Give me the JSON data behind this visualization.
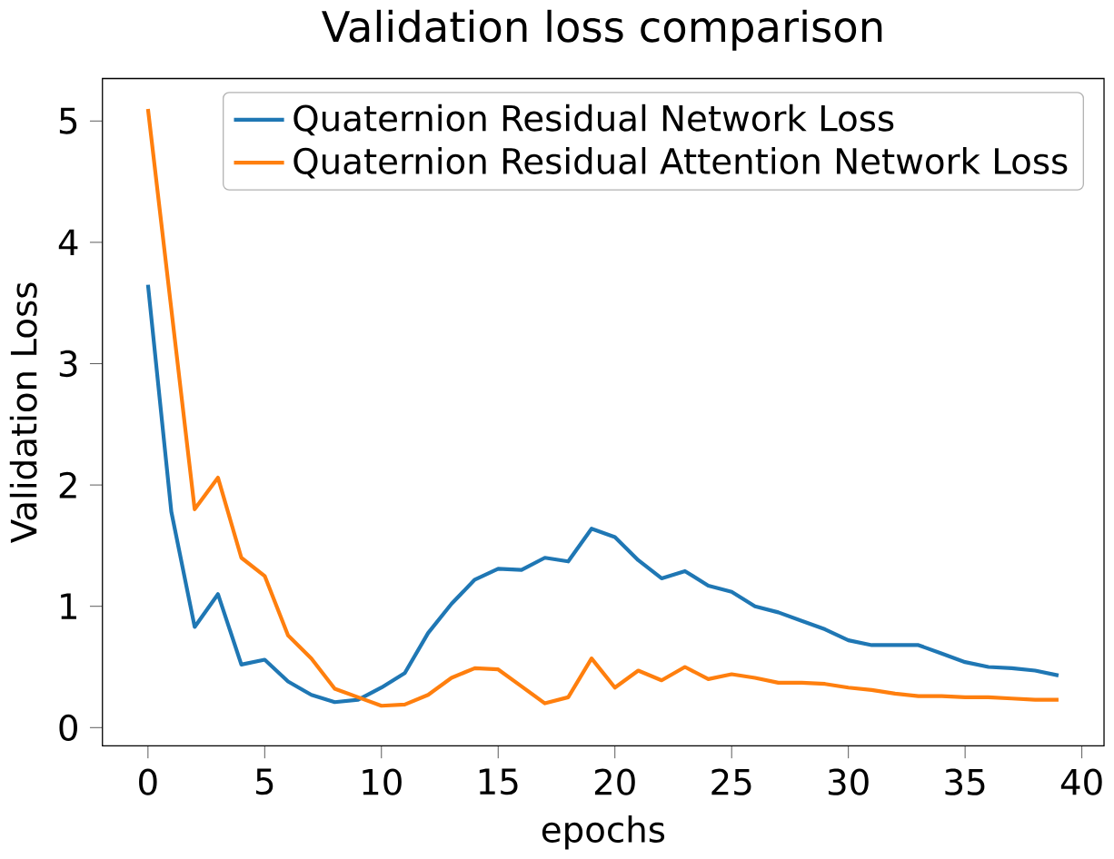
{
  "chart_data": {
    "type": "line",
    "title": "Validation loss comparison",
    "xlabel": "epochs",
    "ylabel": "Validation Loss",
    "x": [
      0,
      1,
      2,
      3,
      4,
      5,
      6,
      7,
      8,
      9,
      10,
      11,
      12,
      13,
      14,
      15,
      16,
      17,
      18,
      19,
      20,
      21,
      22,
      23,
      24,
      25,
      26,
      27,
      28,
      29,
      30,
      31,
      32,
      33,
      34,
      35,
      36,
      37,
      38,
      39
    ],
    "series": [
      {
        "name": "Quaternion Residual Network Loss",
        "color": "#1f77b4",
        "values": [
          3.65,
          1.78,
          0.83,
          1.1,
          0.52,
          0.56,
          0.38,
          0.27,
          0.21,
          0.23,
          0.33,
          0.45,
          0.78,
          1.02,
          1.22,
          1.31,
          1.3,
          1.4,
          1.37,
          1.64,
          1.57,
          1.38,
          1.23,
          1.29,
          1.17,
          1.12,
          1.0,
          0.95,
          0.88,
          0.81,
          0.72,
          0.68,
          0.68,
          0.68,
          0.61,
          0.54,
          0.5,
          0.49,
          0.47,
          0.43
        ]
      },
      {
        "name": "Quaternion Residual Attention Network Loss",
        "color": "#ff7f0e",
        "values": [
          5.1,
          3.45,
          1.8,
          2.06,
          1.4,
          1.25,
          0.76,
          0.57,
          0.32,
          0.25,
          0.18,
          0.19,
          0.27,
          0.41,
          0.49,
          0.48,
          0.34,
          0.2,
          0.25,
          0.57,
          0.33,
          0.47,
          0.39,
          0.5,
          0.4,
          0.44,
          0.41,
          0.37,
          0.37,
          0.36,
          0.33,
          0.31,
          0.28,
          0.26,
          0.26,
          0.25,
          0.25,
          0.24,
          0.23,
          0.23
        ]
      }
    ],
    "xlim": [
      -1.95,
      40.95
    ],
    "xticks": [
      0,
      5,
      10,
      15,
      20,
      25,
      30,
      35,
      40
    ],
    "ylim": [
      -0.15,
      5.35
    ],
    "yticks": [
      0,
      1,
      2,
      3,
      4,
      5
    ],
    "legend": "top right",
    "marker": "none",
    "line_style": "solid",
    "grid": false
  }
}
